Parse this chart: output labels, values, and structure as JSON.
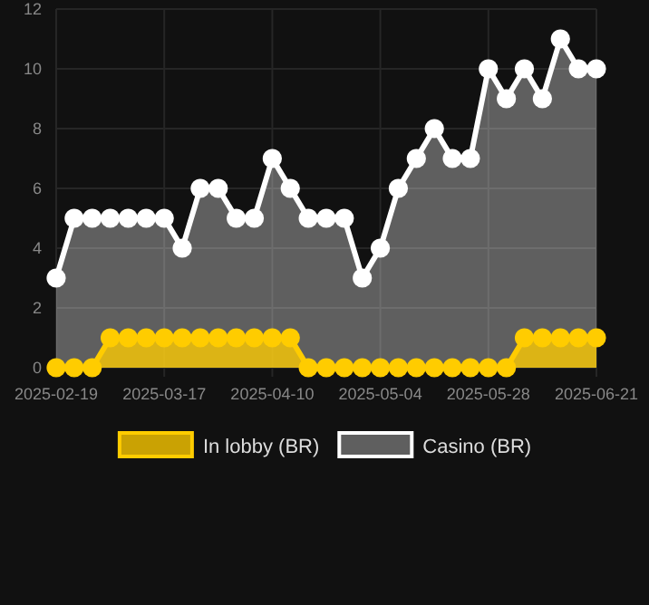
{
  "chart_data": {
    "type": "area",
    "categories": [
      "2025-02-19",
      null,
      null,
      null,
      null,
      null,
      "2025-03-17",
      null,
      null,
      null,
      null,
      null,
      "2025-04-10",
      null,
      null,
      null,
      null,
      null,
      "2025-05-04",
      null,
      null,
      null,
      null,
      null,
      "2025-05-28",
      null,
      null,
      null,
      null,
      null,
      "2025-06-21"
    ],
    "series": [
      {
        "name": "In lobby (BR)",
        "color": "#ffcc00",
        "values": [
          0,
          0,
          0,
          1,
          1,
          1,
          1,
          1,
          1,
          1,
          1,
          1,
          1,
          1,
          0,
          0,
          0,
          0,
          0,
          0,
          0,
          0,
          0,
          0,
          0,
          0,
          1,
          1,
          1,
          1,
          1
        ]
      },
      {
        "name": "Casino (BR)",
        "color": "#ffffff",
        "values": [
          3,
          5,
          5,
          5,
          5,
          5,
          5,
          4,
          6,
          6,
          5,
          5,
          7,
          6,
          5,
          5,
          5,
          3,
          4,
          6,
          7,
          8,
          7,
          7,
          10,
          9,
          10,
          9,
          11,
          10,
          10
        ]
      }
    ],
    "ylim": [
      0,
      12
    ],
    "yticks": [
      0,
      2,
      4,
      6,
      8,
      10,
      12
    ],
    "grid": true,
    "legend": "bottom",
    "marker": "circle",
    "line_style": "solid"
  }
}
